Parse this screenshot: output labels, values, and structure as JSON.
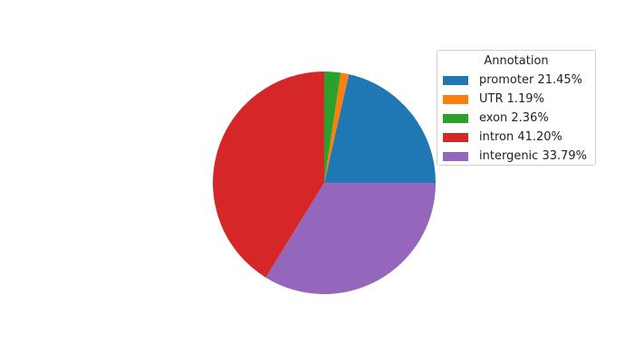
{
  "chart_data": {
    "type": "pie",
    "title": "",
    "legend_title": "Annotation",
    "legend_placement": "upper-right",
    "start_angle": 0,
    "direction": "counterclockwise",
    "slices": [
      {
        "label": "promoter 21.45%",
        "value": 21.45,
        "color": "#1f77b4"
      },
      {
        "label": "UTR 1.19%",
        "value": 1.19,
        "color": "#ff7f0e"
      },
      {
        "label": "exon 2.36%",
        "value": 2.36,
        "color": "#2ca02c"
      },
      {
        "label": "intron 41.20%",
        "value": 41.2,
        "color": "#d62728"
      },
      {
        "label": "intergenic 33.79%",
        "value": 33.79,
        "color": "#9467bd"
      }
    ]
  }
}
